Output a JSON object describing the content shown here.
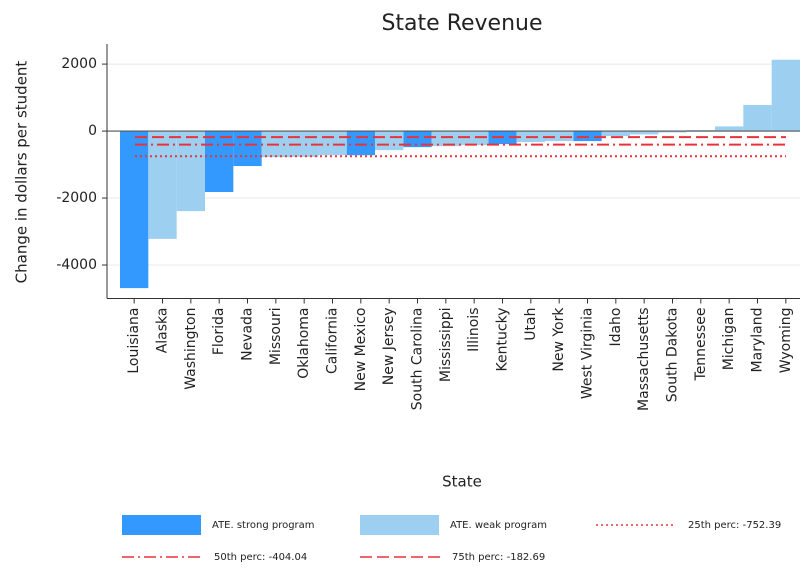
{
  "chart_data": {
    "type": "bar",
    "title": "State Revenue",
    "x_label": "State",
    "y_label": "Change in dollars per student",
    "categories": [
      "Louisiana",
      "Alaska",
      "Washington",
      "Florida",
      "Nevada",
      "Missouri",
      "Oklahoma",
      "California",
      "New Mexico",
      "New Jersey",
      "South Carolina",
      "Mississippi",
      "Illinois",
      "Kentucky",
      "Utah",
      "New York",
      "West Virginia",
      "Idaho",
      "Massachusetts",
      "South Dakota",
      "Tennessee",
      "Michigan",
      "Maryland",
      "Wyoming"
    ],
    "series": [
      {
        "name": "ATE. strong program",
        "color": "#3399ff",
        "values": [
          -4690,
          null,
          null,
          -1820,
          -1045,
          null,
          null,
          null,
          -720,
          null,
          -480,
          null,
          null,
          -390,
          null,
          null,
          -300,
          null,
          null,
          null,
          null,
          null,
          null,
          null
        ]
      },
      {
        "name": "ATE. weak program",
        "color": "#9dd0f0",
        "values": [
          null,
          -3220,
          -2390,
          null,
          null,
          -780,
          -770,
          -720,
          null,
          -570,
          null,
          -450,
          -420,
          null,
          -330,
          -300,
          null,
          -150,
          -100,
          -40,
          30,
          140,
          780,
          2130
        ]
      }
    ],
    "reference_lines": [
      {
        "label": "25th perc: -752.39",
        "value": -752.39,
        "style": "dotted",
        "color": "#e8333a"
      },
      {
        "label": "50th perc: -404.04",
        "value": -404.04,
        "style": "dashdot",
        "color": "#e8333a"
      },
      {
        "label": "75th perc: -182.69",
        "value": -182.69,
        "style": "dashed",
        "color": "#e8333a"
      }
    ],
    "ylim": [
      -5000,
      2600
    ],
    "yticks": [
      -4000,
      -2000,
      0,
      2000
    ],
    "grid": true
  }
}
